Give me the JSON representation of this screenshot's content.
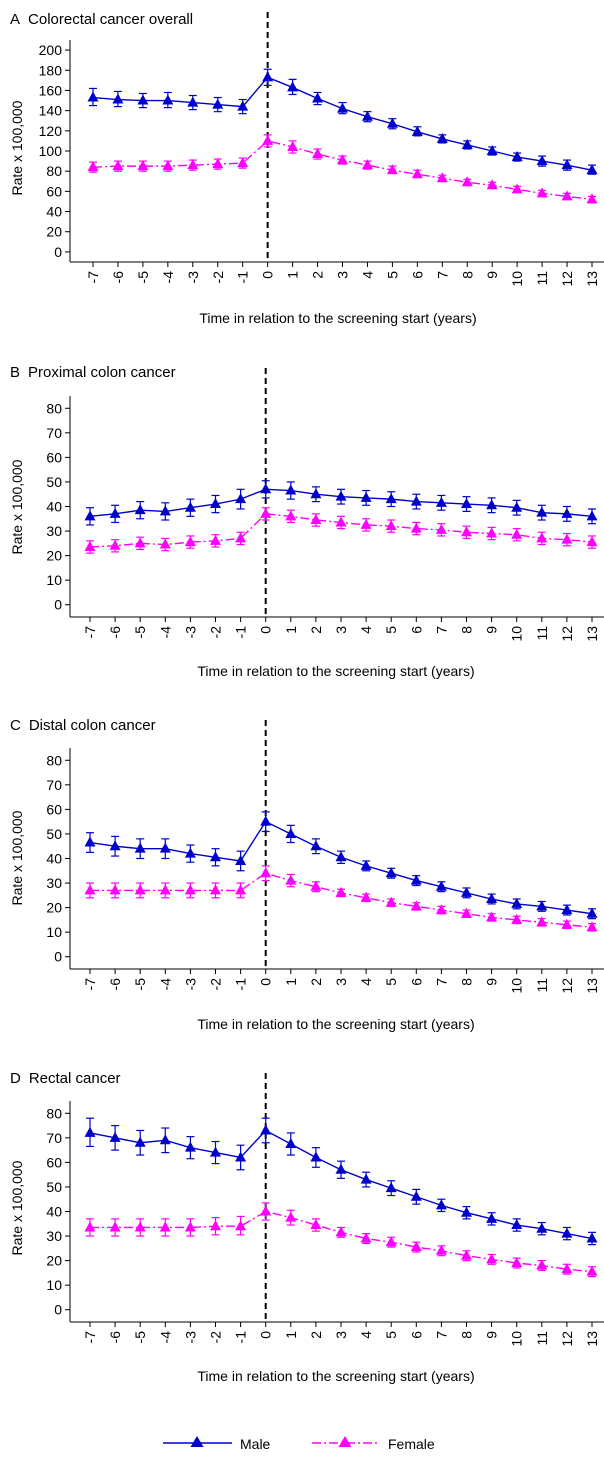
{
  "legend": {
    "male": "Male",
    "female": "Female"
  },
  "colors": {
    "male": "#0000cd",
    "female": "#ff00ff",
    "axis": "#000000"
  },
  "chart_data": [
    {
      "type": "line",
      "panel_letter": "A",
      "title": "Colorectal cancer overall",
      "xlabel": "Time in relation to the screening start (years)",
      "ylabel": "Rate x 100,000",
      "x": [
        -7,
        -6,
        -5,
        -4,
        -3,
        -2,
        -1,
        0,
        1,
        2,
        3,
        4,
        5,
        6,
        7,
        8,
        9,
        10,
        11,
        12,
        13
      ],
      "ylim": [
        -10,
        210
      ],
      "yticks": [
        0,
        20,
        40,
        60,
        80,
        100,
        120,
        140,
        160,
        180,
        200
      ],
      "vline_x": 0,
      "series": [
        {
          "name": "Male",
          "values": [
            153,
            151,
            150,
            150,
            148,
            146,
            144,
            173,
            163,
            152,
            142,
            134,
            127,
            119,
            112,
            106,
            100,
            94,
            90,
            86,
            81
          ],
          "lower": [
            145,
            144,
            143,
            143,
            141,
            139,
            137,
            165,
            156,
            146,
            137,
            129,
            122,
            115,
            108,
            102,
            96,
            90,
            85,
            81,
            77
          ],
          "upper": [
            162,
            159,
            157,
            158,
            155,
            153,
            151,
            181,
            171,
            158,
            148,
            139,
            132,
            124,
            116,
            110,
            104,
            98,
            95,
            91,
            86
          ]
        },
        {
          "name": "Female",
          "values": [
            84,
            85,
            85,
            85,
            86,
            87,
            88,
            110,
            104,
            97,
            91,
            86,
            81,
            77,
            73,
            69,
            66,
            62,
            58,
            55,
            52
          ],
          "lower": [
            79,
            80,
            80,
            80,
            81,
            82,
            83,
            104,
            98,
            92,
            87,
            82,
            78,
            74,
            70,
            66,
            63,
            59,
            55,
            52,
            49
          ],
          "upper": [
            89,
            90,
            90,
            90,
            91,
            92,
            93,
            116,
            110,
            102,
            95,
            90,
            85,
            81,
            76,
            72,
            69,
            65,
            61,
            58,
            55
          ]
        }
      ]
    },
    {
      "type": "line",
      "panel_letter": "B",
      "title": "Proximal colon cancer",
      "xlabel": "Time in relation to the screening start (years)",
      "ylabel": "Rate x 100,000",
      "x": [
        -7,
        -6,
        -5,
        -4,
        -3,
        -2,
        -1,
        0,
        1,
        2,
        3,
        4,
        5,
        6,
        7,
        8,
        9,
        10,
        11,
        12,
        13
      ],
      "ylim": [
        -5,
        85
      ],
      "yticks": [
        0,
        10,
        20,
        30,
        40,
        50,
        60,
        70,
        80
      ],
      "vline_x": 0,
      "series": [
        {
          "name": "Male",
          "values": [
            36,
            37,
            38.5,
            38,
            39.5,
            41,
            43,
            47,
            46.5,
            45,
            44,
            43.5,
            43,
            42,
            41.5,
            41,
            40.5,
            39.5,
            37.5,
            37,
            36
          ],
          "lower": [
            32.5,
            33.5,
            35,
            34.5,
            36,
            37.5,
            39,
            43.5,
            43,
            42,
            41,
            40.5,
            40,
            39,
            38.5,
            38,
            37.5,
            36.5,
            34.5,
            34,
            33
          ],
          "upper": [
            39.5,
            40.5,
            42,
            41.5,
            43,
            44.5,
            47,
            50.5,
            50,
            48,
            47,
            46.5,
            46,
            45,
            44.5,
            44,
            43.5,
            42.5,
            40.5,
            40,
            39
          ]
        },
        {
          "name": "Female",
          "values": [
            23.5,
            24,
            25,
            24.5,
            25.5,
            26,
            27,
            37,
            36,
            34.5,
            33.5,
            32.5,
            32,
            31,
            30.5,
            29.5,
            29,
            28.5,
            27,
            26.5,
            25.5
          ],
          "lower": [
            21,
            21.5,
            22.5,
            22,
            23,
            23.5,
            24.5,
            34.5,
            33.5,
            32,
            31,
            30,
            29.5,
            28.5,
            28,
            27,
            26.5,
            26,
            24.5,
            24,
            23
          ],
          "upper": [
            26,
            26.5,
            27.5,
            27,
            28,
            28.5,
            29.5,
            39.5,
            38.5,
            37,
            36,
            35,
            34.5,
            33.5,
            33,
            32,
            31.5,
            31,
            29.5,
            29,
            28
          ]
        }
      ]
    },
    {
      "type": "line",
      "panel_letter": "C",
      "title": "Distal colon cancer",
      "xlabel": "Time in relation to the screening start (years)",
      "ylabel": "Rate x 100,000",
      "x": [
        -7,
        -6,
        -5,
        -4,
        -3,
        -2,
        -1,
        0,
        1,
        2,
        3,
        4,
        5,
        6,
        7,
        8,
        9,
        10,
        11,
        12,
        13
      ],
      "ylim": [
        -5,
        85
      ],
      "yticks": [
        0,
        10,
        20,
        30,
        40,
        50,
        60,
        70,
        80
      ],
      "vline_x": 0,
      "series": [
        {
          "name": "Male",
          "values": [
            46.5,
            45,
            44,
            44,
            42,
            40.5,
            39,
            55,
            50,
            45,
            40.5,
            37,
            34,
            31,
            28.5,
            26,
            23.5,
            21.5,
            20.5,
            19,
            17.5
          ],
          "lower": [
            42.5,
            41,
            40,
            40,
            38.5,
            37,
            35,
            51,
            46.5,
            42,
            38,
            35,
            32,
            29,
            26.5,
            24,
            21.5,
            19.5,
            18.5,
            17,
            15.5
          ],
          "upper": [
            50.5,
            49,
            48,
            48,
            45.5,
            44,
            43,
            59,
            53.5,
            48,
            43,
            39,
            36,
            33,
            30.5,
            28,
            25.5,
            23.5,
            22.5,
            21,
            19.5
          ]
        },
        {
          "name": "Female",
          "values": [
            27,
            27,
            27,
            27,
            27,
            27,
            27,
            34,
            31,
            28.5,
            26,
            24,
            22,
            20.5,
            19,
            17.5,
            16,
            15,
            14,
            13,
            12
          ],
          "lower": [
            24,
            24,
            24,
            24,
            24,
            24,
            24,
            31,
            28.5,
            26.5,
            24.5,
            22.5,
            20.5,
            19,
            17.5,
            16,
            14.5,
            13.5,
            12.5,
            11.5,
            10.5
          ],
          "upper": [
            30,
            30,
            30,
            30,
            30,
            30,
            30,
            37,
            33.5,
            30.5,
            27.5,
            25.5,
            23.5,
            22,
            20.5,
            19,
            17.5,
            16.5,
            15.5,
            14.5,
            13.5
          ]
        }
      ]
    },
    {
      "type": "line",
      "panel_letter": "D",
      "title": "Rectal cancer",
      "xlabel": "Time in relation to the screening start (years)",
      "ylabel": "Rate x 100,000",
      "x": [
        -7,
        -6,
        -5,
        -4,
        -3,
        -2,
        -1,
        0,
        1,
        2,
        3,
        4,
        5,
        6,
        7,
        8,
        9,
        10,
        11,
        12,
        13
      ],
      "ylim": [
        -5,
        85
      ],
      "yticks": [
        0,
        10,
        20,
        30,
        40,
        50,
        60,
        70,
        80
      ],
      "vline_x": 0,
      "series": [
        {
          "name": "Male",
          "values": [
            72,
            70,
            68,
            69,
            66,
            64,
            62,
            73,
            67.5,
            62,
            57,
            53,
            49.5,
            46,
            42.5,
            39.5,
            37,
            34.5,
            33,
            31,
            29
          ],
          "lower": [
            66.5,
            65,
            63,
            64,
            61.5,
            59.5,
            57,
            68,
            63,
            58,
            53.5,
            50,
            46.5,
            43,
            40,
            37,
            34.5,
            32,
            30.5,
            28.5,
            26.5
          ],
          "upper": [
            78,
            75,
            73,
            74,
            70.5,
            68.5,
            67,
            78,
            72,
            66,
            60.5,
            56,
            52.5,
            49,
            45,
            42,
            39.5,
            37,
            35.5,
            33.5,
            31.5
          ]
        },
        {
          "name": "Female",
          "values": [
            33.5,
            33.5,
            33.5,
            33.5,
            33.5,
            34,
            34,
            40,
            37.5,
            34.5,
            31.5,
            29,
            27.5,
            25.5,
            24,
            22,
            20.5,
            19,
            18,
            16.5,
            15.5
          ],
          "lower": [
            30,
            30,
            30,
            30,
            30,
            30.5,
            30.5,
            36.5,
            34.5,
            32,
            29.5,
            27,
            25.5,
            23.5,
            22,
            20,
            18.5,
            17,
            16,
            14.5,
            13.5
          ],
          "upper": [
            37,
            37,
            37,
            37,
            37,
            37.5,
            38,
            43.5,
            40.5,
            37,
            33.5,
            31,
            29.5,
            27.5,
            26,
            24,
            22.5,
            21,
            20,
            18.5,
            17.5
          ]
        }
      ]
    }
  ]
}
